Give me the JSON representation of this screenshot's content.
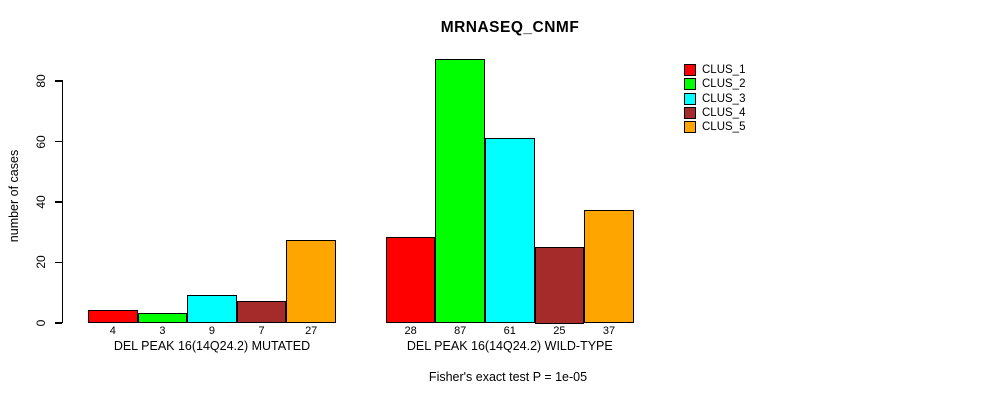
{
  "chart_data": {
    "type": "bar",
    "title": "MRNASEQ_CNMF",
    "ylabel": "number of cases",
    "xlabel": "",
    "y_ticks": [
      0,
      20,
      40,
      60,
      80
    ],
    "ylim": [
      0,
      87
    ],
    "grid": false,
    "legend_position": "top-right",
    "annotation": "Fisher's exact test P = 1e-05",
    "bar_border_color": "#000000",
    "series": [
      {
        "name": "CLUS_1",
        "color": "#FF0000"
      },
      {
        "name": "CLUS_2",
        "color": "#00FF00"
      },
      {
        "name": "CLUS_3",
        "color": "#00FFFF"
      },
      {
        "name": "CLUS_4",
        "color": "#A52A2A"
      },
      {
        "name": "CLUS_5",
        "color": "#FFA500"
      }
    ],
    "groups": [
      {
        "label": "DEL PEAK 16(14Q24.2) MUTATED",
        "values": [
          4,
          3,
          9,
          7,
          27
        ]
      },
      {
        "label": "DEL PEAK 16(14Q24.2) WILD-TYPE",
        "values": [
          28,
          87,
          61,
          25,
          37
        ]
      }
    ]
  }
}
